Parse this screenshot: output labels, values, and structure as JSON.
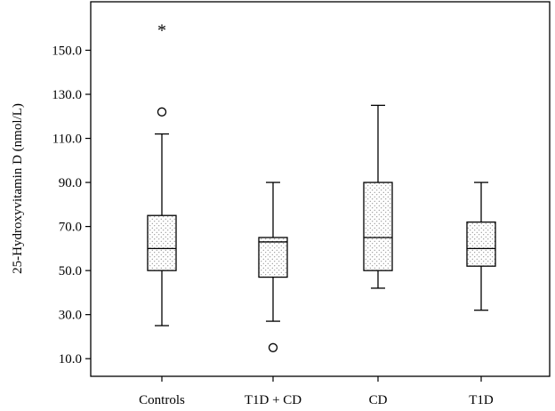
{
  "chart_data": {
    "type": "box",
    "title": "",
    "xlabel": "",
    "ylabel": "25-Hydroxyvitamin D (nmol/L)",
    "ylim": [
      2,
      172
    ],
    "yticks": [
      10,
      30,
      50,
      70,
      90,
      110,
      130,
      150
    ],
    "ytick_labels": [
      "10.0",
      "30.0",
      "50.0",
      "70.0",
      "90.0",
      "110.0",
      "130.0",
      "150.0"
    ],
    "grid": false,
    "box_fill": "dotted pattern",
    "categories": [
      "Controls",
      "T1D + CD",
      "CD",
      "T1D"
    ],
    "boxes": [
      {
        "category": "Controls",
        "whisker_low": 25,
        "q1": 50,
        "median": 60,
        "q3": 75,
        "whisker_high": 112,
        "outliers": [
          122
        ],
        "extremes": [
          160
        ]
      },
      {
        "category": "T1D + CD",
        "whisker_low": 27,
        "q1": 47,
        "median": 63,
        "q3": 65,
        "whisker_high": 90,
        "outliers": [
          15
        ],
        "extremes": []
      },
      {
        "category": "CD",
        "whisker_low": 42,
        "q1": 50,
        "median": 65,
        "q3": 90,
        "whisker_high": 125,
        "outliers": [],
        "extremes": []
      },
      {
        "category": "T1D",
        "whisker_low": 32,
        "q1": 52,
        "median": 60,
        "q3": 72,
        "whisker_high": 90,
        "outliers": [],
        "extremes": []
      }
    ],
    "colors": {
      "stroke": "#000000",
      "dots": "#555555",
      "background": "#ffffff"
    }
  }
}
